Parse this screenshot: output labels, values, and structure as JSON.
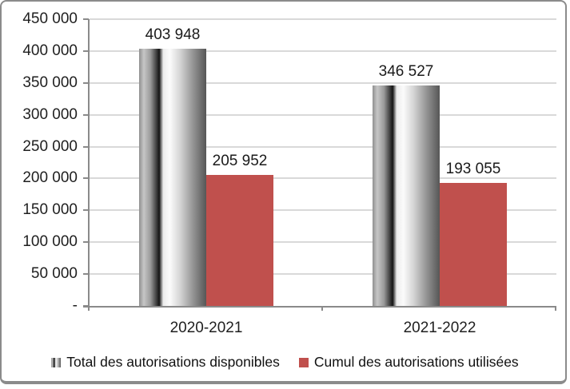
{
  "chart_data": {
    "type": "bar",
    "title": "",
    "categories": [
      "2020-2021",
      "2021-2022"
    ],
    "series": [
      {
        "name": "Total des autorisations disponibles",
        "values": [
          403948,
          346527
        ],
        "labels": [
          "403 948",
          "346 527"
        ],
        "fill": "gray-cylinder-gradient"
      },
      {
        "name": "Cumul des autorisations utilisées",
        "values": [
          205952,
          193055
        ],
        "labels": [
          "205 952",
          "193 055"
        ],
        "fill": "solid",
        "color": "#c0504d"
      }
    ],
    "y_axis": {
      "min": 0,
      "max": 450000,
      "step": 50000,
      "tick_labels": [
        "450 000",
        "400 000",
        "350 000",
        "300 000",
        "250 000",
        "200 000",
        "150 000",
        "100 000",
        "50 000",
        "-"
      ]
    },
    "grid": true,
    "legend_position": "bottom",
    "colors": {
      "gridline": "#d9d9d9",
      "axis": "#8a8a8a",
      "text": "#1f1f1f",
      "series2": "#c0504d",
      "frame_border": "#8b8b8b"
    }
  }
}
